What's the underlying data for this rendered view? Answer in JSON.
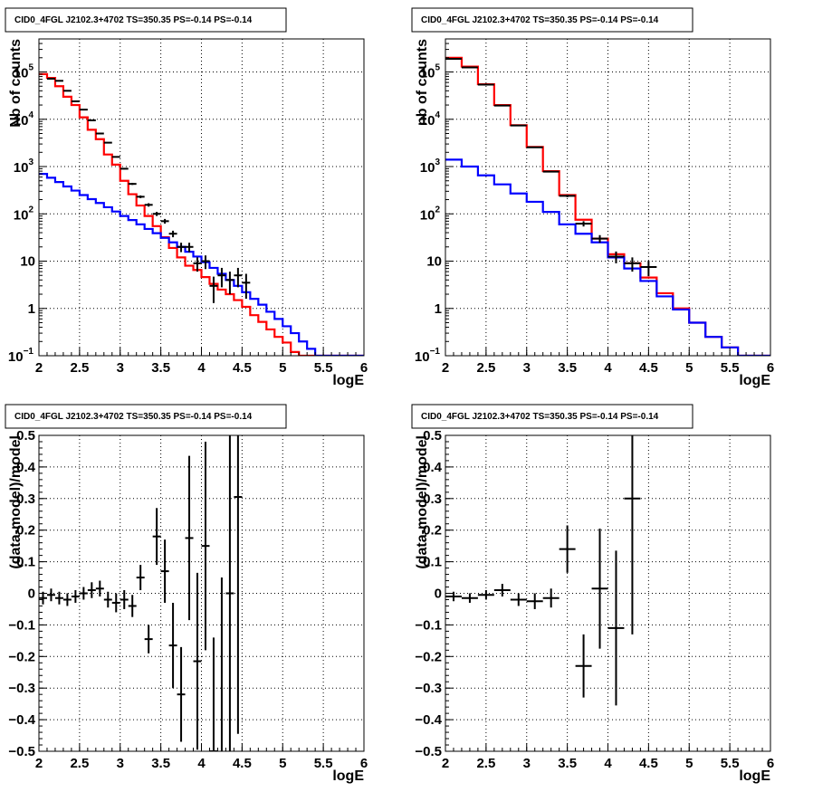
{
  "chart_data": [
    {
      "id": "tl",
      "type": "histogram",
      "title": "CID0_4FGL J2102.3+4702 TS=350.35 PS=-0.14 PS=-0.14",
      "xlabel": "logE",
      "ylabel": "Nb of counts",
      "xlim": [
        2,
        6
      ],
      "ylim": [
        0.1,
        500000
      ],
      "log_y": true,
      "grid": true,
      "xticks": [
        "2",
        "2.5",
        "3",
        "3.5",
        "4",
        "4.5",
        "5",
        "5.5",
        "6"
      ],
      "yticks": [
        {
          "value": 0.1,
          "base": "10",
          "exp": "−1"
        },
        {
          "value": 1,
          "label": "1"
        },
        {
          "value": 10,
          "label": "10"
        },
        {
          "value": 100,
          "base": "10",
          "exp": "2"
        },
        {
          "value": 1000,
          "base": "10",
          "exp": "3"
        },
        {
          "value": 10000,
          "base": "10",
          "exp": "4"
        },
        {
          "value": 100000,
          "base": "10",
          "exp": "5"
        }
      ],
      "bin_edges": [
        2.0,
        2.1,
        2.2,
        2.3,
        2.4,
        2.5,
        2.6,
        2.7,
        2.8,
        2.9,
        3.0,
        3.1,
        3.2,
        3.3,
        3.4,
        3.5,
        3.6,
        3.7,
        3.8,
        3.9,
        4.0,
        4.1,
        4.2,
        4.3,
        4.4,
        4.5,
        4.6,
        4.7,
        4.8,
        4.9,
        5.0,
        5.1,
        5.2,
        5.3,
        5.4,
        5.5,
        5.6,
        5.7,
        5.8,
        5.9,
        6.0
      ],
      "series": [
        {
          "name": "",
          "kind": "step",
          "color": "#ff0000",
          "values": [
            90000,
            75000,
            50000,
            30000,
            20000,
            11000,
            6000,
            3800,
            1800,
            1100,
            500,
            260,
            150,
            90,
            55,
            32,
            19,
            12,
            8,
            6.5,
            4.6,
            3.3,
            2.5,
            2.0,
            1.5,
            1.08,
            0.72,
            0.52,
            0.36,
            0.25,
            0.19,
            0.12,
            0.1,
            0.1,
            0.1,
            0.1,
            0.1,
            0.1,
            0.1,
            0.1
          ]
        },
        {
          "name": "",
          "kind": "step",
          "color": "#0000ff",
          "values": [
            700,
            580,
            470,
            380,
            310,
            250,
            205,
            170,
            138,
            112,
            90,
            74,
            60,
            48,
            39,
            31,
            25,
            20,
            15.8,
            12.5,
            9.5,
            7.2,
            5.4,
            4.0,
            3.0,
            2.2,
            1.6,
            1.2,
            0.85,
            0.6,
            0.42,
            0.3,
            0.2,
            0.14,
            0.1,
            0.1,
            0.1,
            0.1,
            0.1,
            0.1
          ]
        },
        {
          "name": "",
          "kind": "errorbars",
          "color": "#000000",
          "x": [
            2.15,
            2.25,
            2.35,
            2.45,
            2.55,
            2.65,
            2.75,
            2.85,
            2.95,
            3.05,
            3.15,
            3.25,
            3.35,
            3.45,
            3.55,
            3.65,
            3.75,
            3.85,
            3.95,
            4.05,
            4.15,
            4.25,
            4.35,
            4.45,
            4.55
          ],
          "y": [
            72000,
            65000,
            40000,
            24000,
            16000,
            9500,
            5000,
            3200,
            1600,
            900,
            430,
            230,
            155,
            100,
            70,
            38,
            20,
            20,
            9,
            10,
            3,
            5,
            4,
            5,
            3.5
          ],
          "yerr": [
            270,
            250,
            200,
            150,
            125,
            95,
            70,
            55,
            40,
            30,
            21,
            15,
            13,
            10,
            8,
            6,
            4.5,
            4.5,
            3,
            3.2,
            1.7,
            2.2,
            2,
            2.2,
            1.9
          ],
          "xerr": 0.05
        }
      ]
    },
    {
      "id": "tr",
      "type": "histogram",
      "title": "CID0_4FGL J2102.3+4702 TS=350.35 PS=-0.14 PS=-0.14",
      "xlabel": "logE",
      "ylabel": "nb of counts",
      "xlim": [
        2,
        6
      ],
      "ylim": [
        0.1,
        500000
      ],
      "log_y": true,
      "grid": true,
      "xticks": [
        "2",
        "2.5",
        "3",
        "3.5",
        "4",
        "4.5",
        "5",
        "5.5",
        "6"
      ],
      "yticks": [
        {
          "value": 0.1,
          "base": "10",
          "exp": "−1"
        },
        {
          "value": 1,
          "label": "1"
        },
        {
          "value": 10,
          "label": "10"
        },
        {
          "value": 100,
          "base": "10",
          "exp": "2"
        },
        {
          "value": 1000,
          "base": "10",
          "exp": "3"
        },
        {
          "value": 10000,
          "base": "10",
          "exp": "4"
        },
        {
          "value": 100000,
          "base": "10",
          "exp": "5"
        }
      ],
      "bin_edges": [
        2.0,
        2.2,
        2.4,
        2.6,
        2.8,
        3.0,
        3.2,
        3.4,
        3.6,
        3.8,
        4.0,
        4.2,
        4.4,
        4.6,
        4.8,
        5.0,
        5.2,
        5.4,
        5.6,
        5.8,
        6.0
      ],
      "series": [
        {
          "name": "",
          "kind": "step",
          "color": "#ff0000",
          "values": [
            200000,
            130000,
            55000,
            20000,
            7500,
            2600,
            800,
            250,
            75,
            30,
            14,
            9,
            4.5,
            2.1,
            1.0,
            0.5,
            0.25,
            0.15,
            0.1,
            0.1
          ]
        },
        {
          "name": "",
          "kind": "step",
          "color": "#0000ff",
          "values": [
            1400,
            1000,
            650,
            420,
            270,
            180,
            110,
            60,
            38,
            25,
            12,
            7,
            3.8,
            1.8,
            0.95,
            0.5,
            0.25,
            0.15,
            0.1,
            0.1
          ]
        },
        {
          "name": "",
          "kind": "errorbars",
          "color": "#000000",
          "x": [
            2.1,
            2.3,
            2.5,
            2.7,
            2.9,
            3.1,
            3.3,
            3.5,
            3.7,
            3.9,
            4.1,
            4.3,
            4.5
          ],
          "y": [
            190000,
            125000,
            54000,
            19500,
            7400,
            2550,
            780,
            240,
            62,
            30,
            12.5,
            9,
            7.5
          ],
          "yerr": [
            430,
            350,
            230,
            140,
            86,
            50,
            28,
            15,
            8,
            5.5,
            3.5,
            3,
            2.7
          ],
          "xerr": 0.1
        }
      ]
    },
    {
      "id": "bl",
      "type": "scatter",
      "title": "CID0_4FGL J2102.3+4702 TS=350.35 PS=-0.14 PS=-0.14",
      "xlabel": "logE",
      "ylabel": "(data-model)/model",
      "xlim": [
        2,
        6
      ],
      "ylim": [
        -0.5,
        0.5
      ],
      "log_y": false,
      "grid": true,
      "xticks": [
        "2",
        "2.5",
        "3",
        "3.5",
        "4",
        "4.5",
        "5",
        "5.5",
        "6"
      ],
      "yticks": [
        {
          "value": -0.5,
          "label": "−0.5"
        },
        {
          "value": -0.4,
          "label": "−0.4"
        },
        {
          "value": -0.3,
          "label": "−0.3"
        },
        {
          "value": -0.2,
          "label": "−0.2"
        },
        {
          "value": -0.1,
          "label": "−0.1"
        },
        {
          "value": 0,
          "label": "0"
        },
        {
          "value": 0.1,
          "label": "0.1"
        },
        {
          "value": 0.2,
          "label": "0.2"
        },
        {
          "value": 0.3,
          "label": "0.3"
        },
        {
          "value": 0.4,
          "label": "0.4"
        },
        {
          "value": 0.5,
          "label": "0.5"
        }
      ],
      "series": [
        {
          "name": "",
          "kind": "errorbars",
          "color": "#000000",
          "x": [
            2.05,
            2.15,
            2.25,
            2.35,
            2.45,
            2.55,
            2.65,
            2.75,
            2.85,
            2.95,
            3.05,
            3.15,
            3.25,
            3.35,
            3.45,
            3.55,
            3.65,
            3.75,
            3.85,
            3.95,
            4.05,
            4.15,
            4.25,
            4.35,
            4.45
          ],
          "y": [
            -0.015,
            -0.005,
            -0.015,
            -0.02,
            -0.01,
            0.0,
            0.01,
            0.015,
            -0.02,
            -0.03,
            -0.02,
            -0.04,
            0.05,
            -0.145,
            0.18,
            0.07,
            -0.165,
            -0.32,
            0.175,
            -0.215,
            0.15,
            -0.5,
            -0.55,
            0.0,
            0.305
          ],
          "yerr": [
            0.02,
            0.02,
            0.02,
            0.02,
            0.02,
            0.02,
            0.025,
            0.025,
            0.025,
            0.03,
            0.03,
            0.035,
            0.04,
            0.045,
            0.09,
            0.1,
            0.135,
            0.15,
            0.26,
            0.28,
            0.33,
            0.36,
            0.6,
            0.58,
            0.75
          ],
          "xerr": 0.05
        }
      ]
    },
    {
      "id": "br",
      "type": "scatter",
      "title": "CID0_4FGL J2102.3+4702 TS=350.35 PS=-0.14 PS=-0.14",
      "xlabel": "logE",
      "ylabel": "(data-model)/model",
      "xlim": [
        2,
        6
      ],
      "ylim": [
        -0.5,
        0.5
      ],
      "log_y": false,
      "grid": true,
      "xticks": [
        "2",
        "2.5",
        "3",
        "3.5",
        "4",
        "4.5",
        "5",
        "5.5",
        "6"
      ],
      "yticks": [
        {
          "value": -0.5,
          "label": "−0.5"
        },
        {
          "value": -0.4,
          "label": "−0.4"
        },
        {
          "value": -0.3,
          "label": "−0.3"
        },
        {
          "value": -0.2,
          "label": "−0.2"
        },
        {
          "value": -0.1,
          "label": "−0.1"
        },
        {
          "value": 0,
          "label": "0"
        },
        {
          "value": 0.1,
          "label": "0.1"
        },
        {
          "value": 0.2,
          "label": "0.2"
        },
        {
          "value": 0.3,
          "label": "0.3"
        },
        {
          "value": 0.4,
          "label": "0.4"
        },
        {
          "value": 0.5,
          "label": "0.5"
        }
      ],
      "series": [
        {
          "name": "",
          "kind": "errorbars",
          "color": "#000000",
          "x": [
            2.1,
            2.3,
            2.5,
            2.7,
            2.9,
            3.1,
            3.3,
            3.5,
            3.7,
            3.9,
            4.1,
            4.3
          ],
          "y": [
            -0.01,
            -0.015,
            -0.005,
            0.01,
            -0.02,
            -0.025,
            -0.015,
            0.14,
            -0.23,
            0.015,
            -0.11,
            0.3
          ],
          "yerr": [
            0.015,
            0.015,
            0.015,
            0.02,
            0.02,
            0.025,
            0.03,
            0.075,
            0.1,
            0.19,
            0.245,
            0.43
          ],
          "xerr": 0.1
        }
      ]
    }
  ]
}
